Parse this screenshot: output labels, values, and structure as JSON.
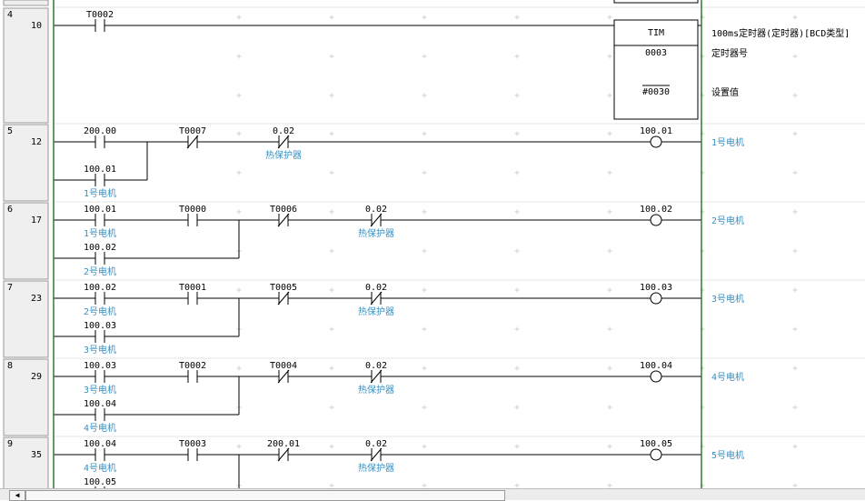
{
  "colors": {
    "rail": "#2e7d32",
    "comment": "#3a8fc0",
    "wire": "#000000",
    "gutter": "#efefef",
    "grid": "#e4e4e4"
  },
  "rungs": [
    {
      "rung": "4",
      "step": "10",
      "height": 128,
      "contacts": [
        {
          "col": 0,
          "address": "T0002",
          "type": "NO",
          "comment": ""
        }
      ],
      "instruction": {
        "name": "TIM",
        "operands": [
          "0003",
          "#0030"
        ],
        "comments": [
          "100ms定时器(定时器)[BCD类型]",
          "定时器号",
          "设置值"
        ]
      }
    },
    {
      "rung": "5",
      "step": "12",
      "height": 86,
      "contacts": [
        {
          "col": 0,
          "address": "200.00",
          "type": "NO",
          "comment": ""
        },
        {
          "col": 1,
          "address": "T0007",
          "type": "NC",
          "comment": ""
        },
        {
          "col": 2,
          "address": "0.02",
          "type": "NC",
          "comment": "热保护器"
        }
      ],
      "branch": {
        "address": "100.01",
        "type": "NO",
        "comment": "1号电机",
        "join": "a"
      },
      "coil": {
        "address": "100.01",
        "comment": "1号电机"
      }
    },
    {
      "rung": "6",
      "step": "17",
      "height": 86,
      "contacts": [
        {
          "col": 0,
          "address": "100.01",
          "type": "NO",
          "comment": "1号电机"
        },
        {
          "col": 1,
          "address": "T0000",
          "type": "NO",
          "comment": ""
        },
        {
          "col": 2,
          "address": "T0006",
          "type": "NC",
          "comment": ""
        },
        {
          "col": 3,
          "address": "0.02",
          "type": "NC",
          "comment": "热保护器"
        }
      ],
      "branch": {
        "address": "100.02",
        "type": "NO",
        "comment": "2号电机",
        "join": "b"
      },
      "coil": {
        "address": "100.02",
        "comment": "2号电机"
      }
    },
    {
      "rung": "7",
      "step": "23",
      "height": 86,
      "contacts": [
        {
          "col": 0,
          "address": "100.02",
          "type": "NO",
          "comment": "2号电机"
        },
        {
          "col": 1,
          "address": "T0001",
          "type": "NO",
          "comment": ""
        },
        {
          "col": 2,
          "address": "T0005",
          "type": "NC",
          "comment": ""
        },
        {
          "col": 3,
          "address": "0.02",
          "type": "NC",
          "comment": "热保护器"
        }
      ],
      "branch": {
        "address": "100.03",
        "type": "NO",
        "comment": "3号电机",
        "join": "b"
      },
      "coil": {
        "address": "100.03",
        "comment": "3号电机"
      }
    },
    {
      "rung": "8",
      "step": "29",
      "height": 86,
      "contacts": [
        {
          "col": 0,
          "address": "100.03",
          "type": "NO",
          "comment": "3号电机"
        },
        {
          "col": 1,
          "address": "T0002",
          "type": "NO",
          "comment": ""
        },
        {
          "col": 2,
          "address": "T0004",
          "type": "NC",
          "comment": ""
        },
        {
          "col": 3,
          "address": "0.02",
          "type": "NC",
          "comment": "热保护器"
        }
      ],
      "branch": {
        "address": "100.04",
        "type": "NO",
        "comment": "4号电机",
        "join": "b"
      },
      "coil": {
        "address": "100.04",
        "comment": "4号电机"
      }
    },
    {
      "rung": "9",
      "step": "35",
      "height": 86,
      "contacts": [
        {
          "col": 0,
          "address": "100.04",
          "type": "NO",
          "comment": "4号电机"
        },
        {
          "col": 1,
          "address": "T0003",
          "type": "NO",
          "comment": ""
        },
        {
          "col": 2,
          "address": "200.01",
          "type": "NC",
          "comment": ""
        },
        {
          "col": 3,
          "address": "0.02",
          "type": "NC",
          "comment": "热保护器"
        }
      ],
      "branch": {
        "address": "100.05",
        "type": "NO",
        "comment": "",
        "join": "b"
      },
      "coil": {
        "address": "100.05",
        "comment": "5号电机"
      }
    }
  ],
  "scrollbar": {
    "left_arrow": "◀"
  }
}
